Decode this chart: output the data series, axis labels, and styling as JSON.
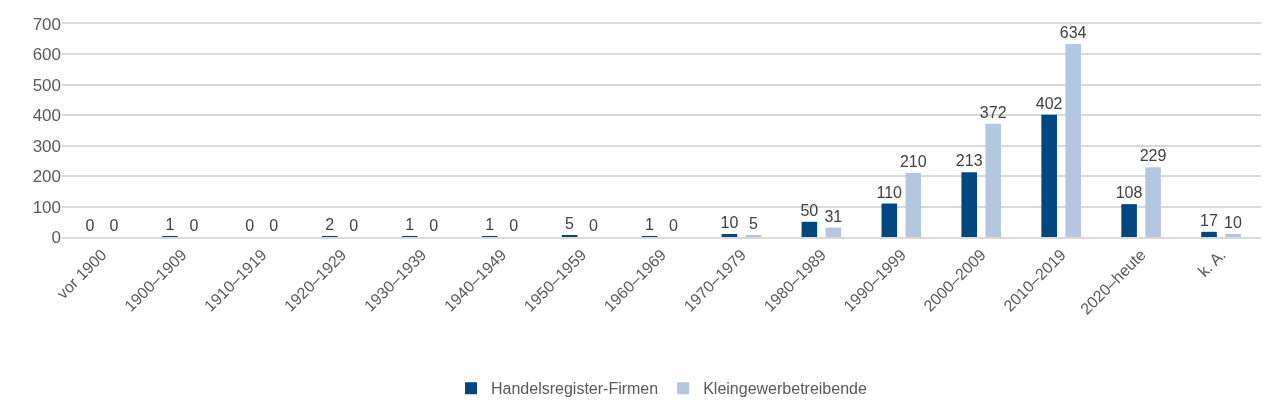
{
  "chart_data": {
    "type": "bar",
    "categories": [
      "vor 1900",
      "1900–1909",
      "1910–1919",
      "1920–1929",
      "1930–1939",
      "1940–1949",
      "1950–1959",
      "1960–1969",
      "1970–1979",
      "1980–1989",
      "1990–1999",
      "2000–2009",
      "2010–2019",
      "2020–heute",
      "k. A."
    ],
    "series": [
      {
        "name": "Handelsregister-Firmen",
        "color": "#00467f",
        "values": [
          0,
          1,
          0,
          2,
          1,
          1,
          5,
          1,
          10,
          50,
          110,
          213,
          402,
          108,
          17
        ]
      },
      {
        "name": "Kleingewerbetreibende",
        "color": "#b4c6e0",
        "values": [
          0,
          0,
          0,
          0,
          0,
          0,
          0,
          0,
          5,
          31,
          210,
          372,
          634,
          229,
          10
        ]
      }
    ],
    "ylim": [
      0,
      700
    ],
    "yticks": [
      0,
      100,
      200,
      300,
      400,
      500,
      600,
      700
    ],
    "grid": "y",
    "legend": "bottom",
    "data_labels": true
  }
}
